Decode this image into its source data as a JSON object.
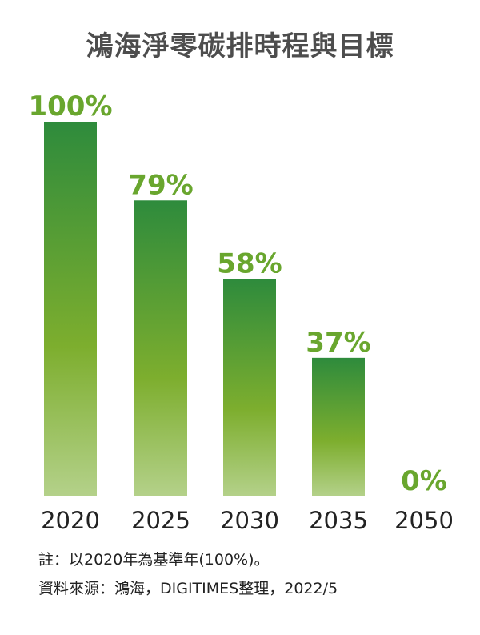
{
  "chart_data": {
    "type": "bar",
    "title": "鴻海淨零碳排時程與目標",
    "categories": [
      "2020",
      "2025",
      "2030",
      "2035",
      "2050"
    ],
    "values": [
      100,
      79,
      58,
      37,
      0
    ],
    "value_labels": [
      "100%",
      "79%",
      "58%",
      "37%",
      "0%"
    ],
    "ylim": [
      0,
      100
    ],
    "grid": false,
    "legend": "none",
    "colors": {
      "bar_top": "#2e8b3c",
      "bar_mid": "#7dae2e",
      "bar_bottom": "#b4d18a",
      "label": "#69a62e",
      "axis_text": "#222222"
    }
  },
  "notes": {
    "line1": "註：以2020年為基準年(100%)。",
    "line2": "資料來源：鴻海，DIGITIMES整理，2022/5"
  }
}
